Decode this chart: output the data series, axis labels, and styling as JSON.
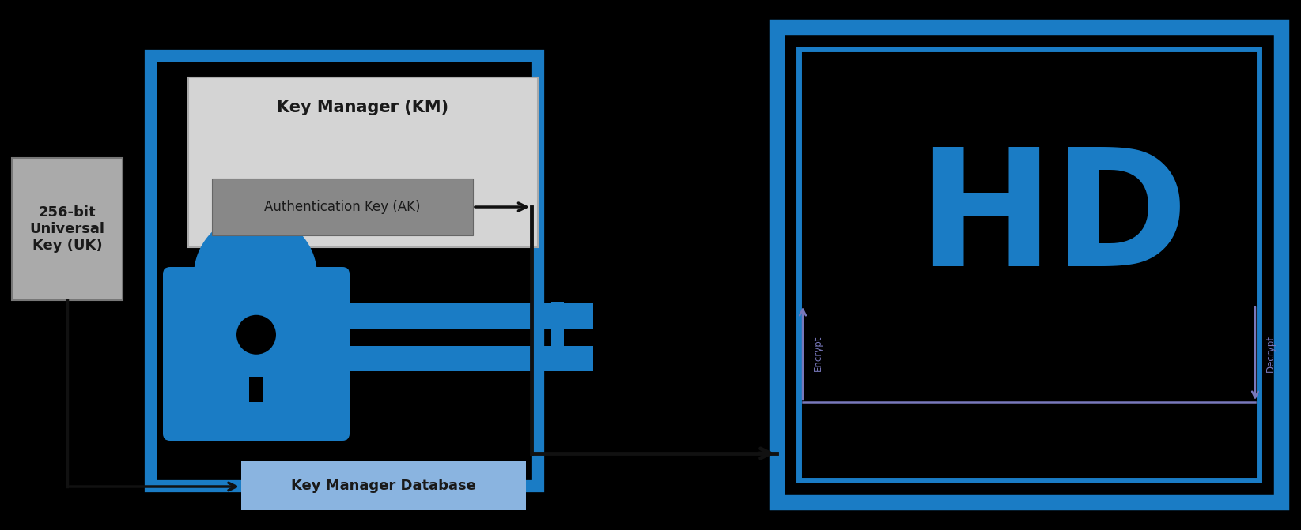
{
  "bg_color": "#000000",
  "blue": "#1a7cc5",
  "gray_box_fill": "#aaaaaa",
  "light_gray_fill": "#d4d4d4",
  "dark_gray_fill": "#888888",
  "db_label_fill": "#8ab4e0",
  "text_dark": "#1a1a1a",
  "white": "#ffffff",
  "black": "#111111",
  "enc_color": "#7878bb",
  "uk_text": "256-bit\nUniversal\nKey (UK)",
  "km_title": "Key Manager (KM)",
  "ak_text": "Authentication Key (AK)",
  "db_text": "Key Manager Database",
  "hd_text": "HD",
  "encrypt_text": "Encrypt",
  "decrypt_text": "Decrypt",
  "fig_w": 16.45,
  "fig_h": 6.71,
  "xlim": 16.45,
  "ylim": 6.71
}
